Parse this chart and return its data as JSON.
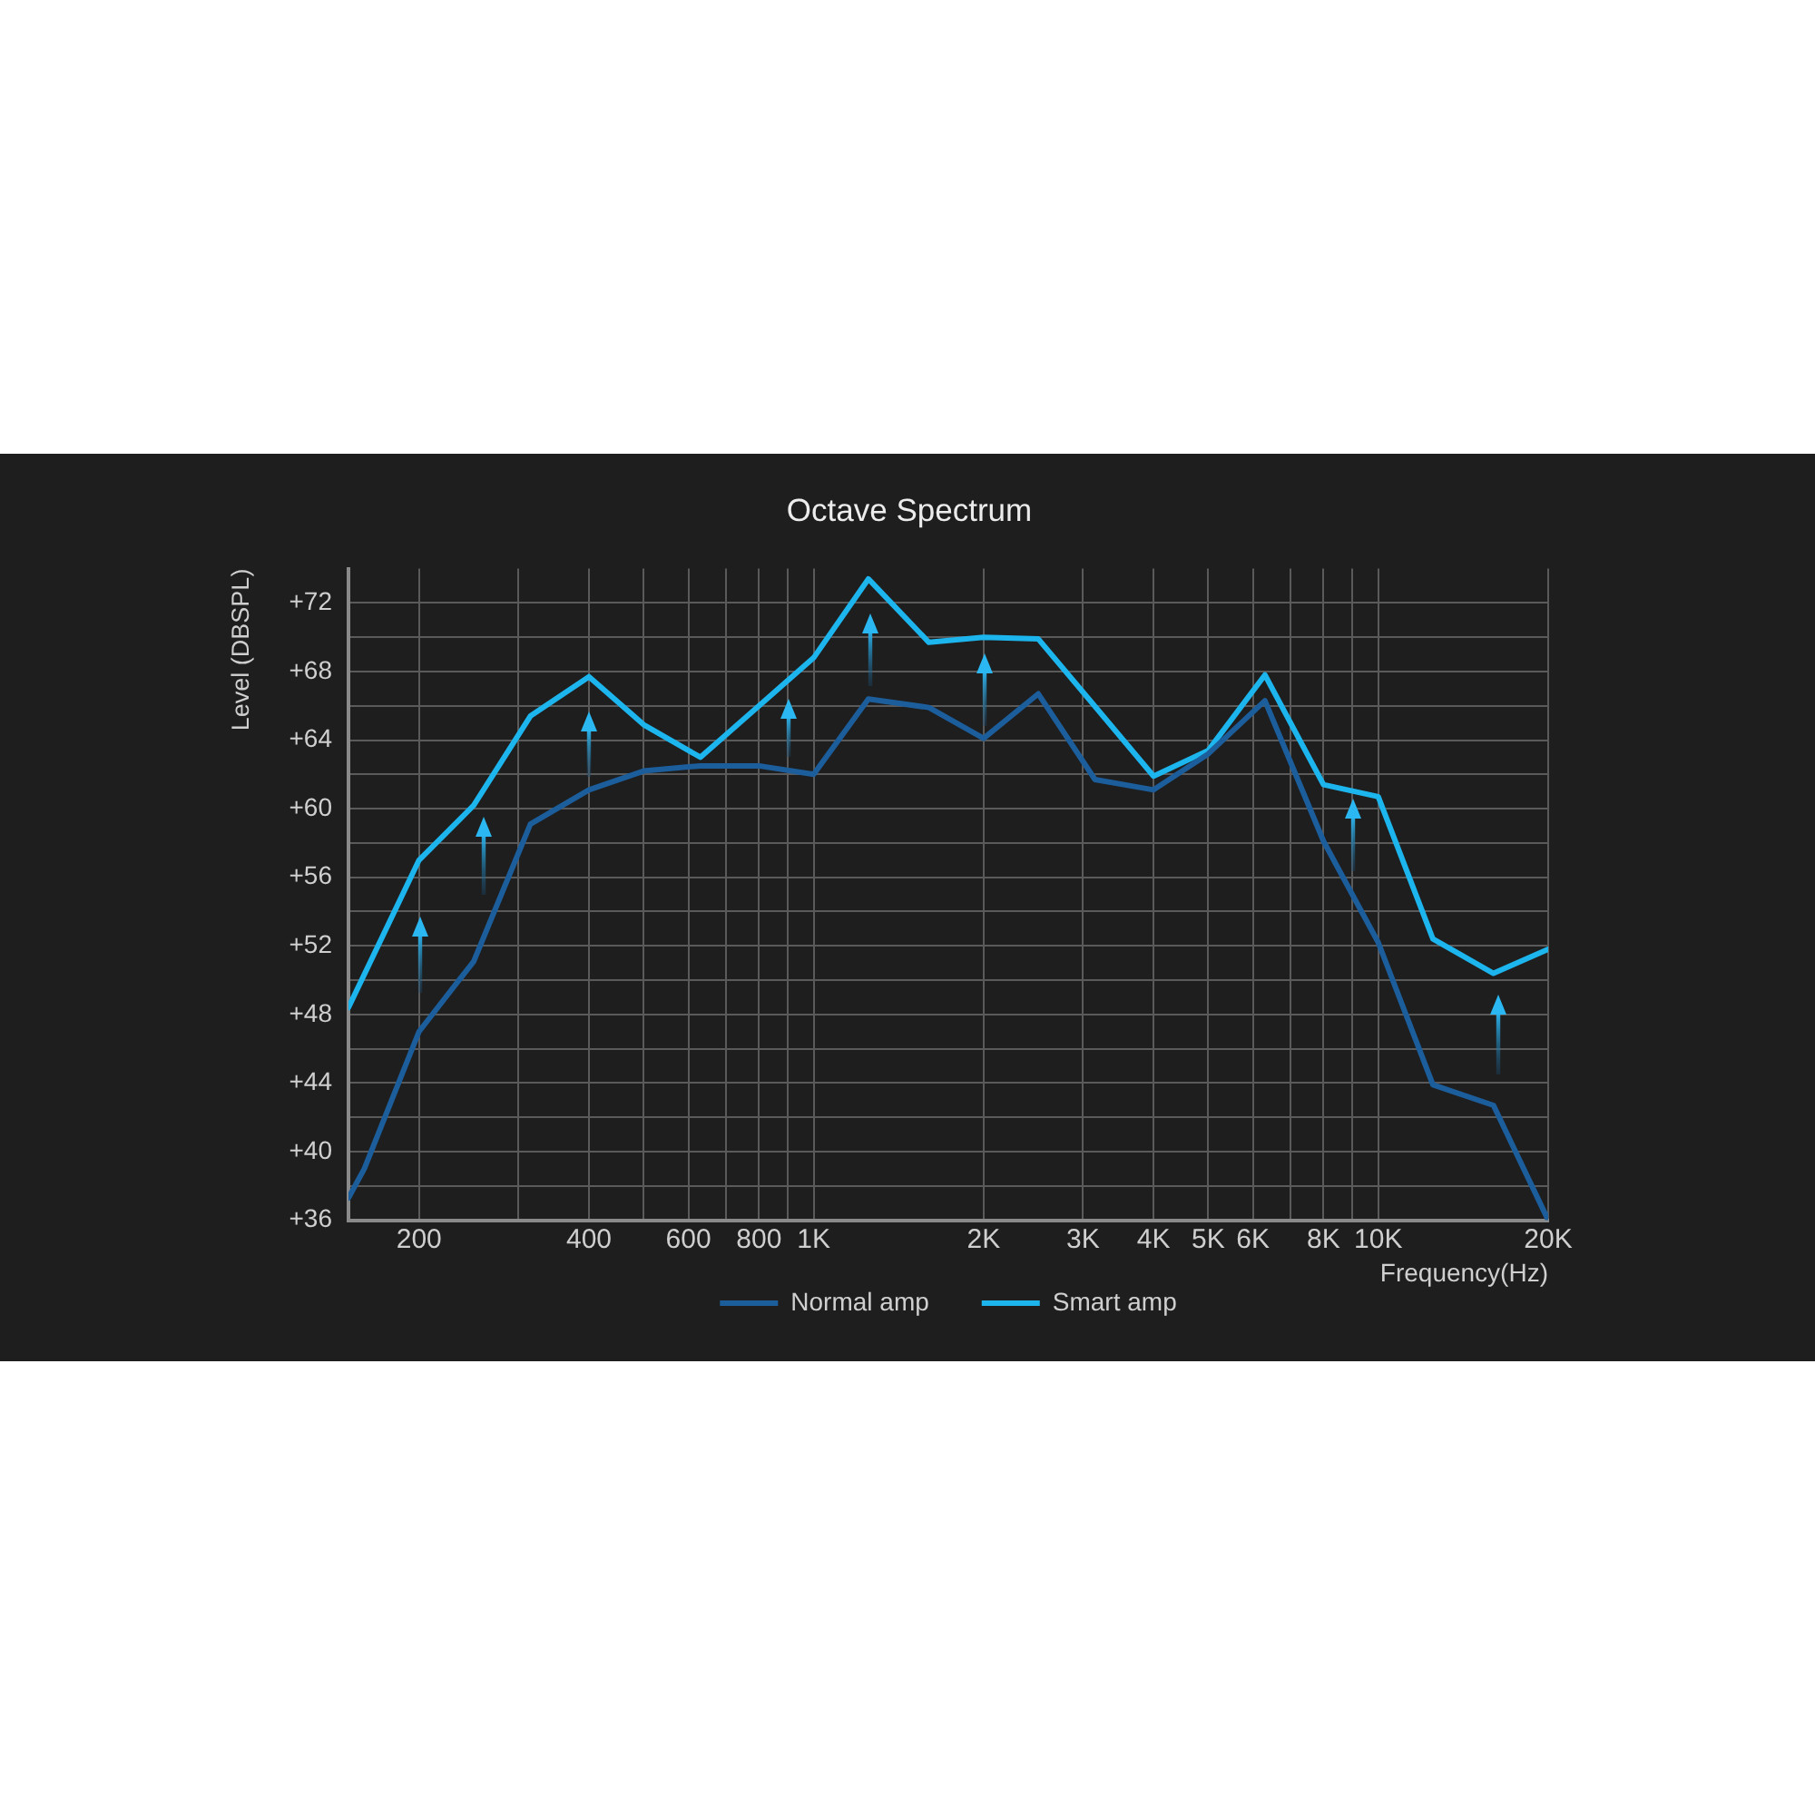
{
  "chart_data": {
    "type": "line",
    "title": "Octave Spectrum",
    "xlabel": "Frequency(Hz)",
    "ylabel": "Level (DBSPL)",
    "log": "x",
    "xlim": [
      150,
      20000
    ],
    "ylim": [
      36,
      74
    ],
    "xticks": [
      200,
      {
        "value": 300,
        "label": null
      },
      400,
      {
        "value": 500,
        "label": null
      },
      600,
      {
        "value": 700,
        "label": null
      },
      800,
      {
        "value": 900,
        "label": null
      },
      {
        "value": 1000,
        "label": "1K"
      },
      {
        "value": 2000,
        "label": "2K"
      },
      {
        "value": 3000,
        "label": "3K"
      },
      {
        "value": 4000,
        "label": "4K"
      },
      {
        "value": 5000,
        "label": "5K"
      },
      {
        "value": 6000,
        "label": "6K"
      },
      {
        "value": 7000,
        "label": null
      },
      {
        "value": 8000,
        "label": "8K"
      },
      {
        "value": 9000,
        "label": null
      },
      {
        "value": 10000,
        "label": "10K"
      },
      {
        "value": 20000,
        "label": "20K"
      }
    ],
    "yticks": [
      {
        "value": 36,
        "label": "+36"
      },
      {
        "value": 38,
        "label": null
      },
      {
        "value": 40,
        "label": "+40"
      },
      {
        "value": 42,
        "label": null
      },
      {
        "value": 44,
        "label": "+44"
      },
      {
        "value": 46,
        "label": null
      },
      {
        "value": 48,
        "label": "+48"
      },
      {
        "value": 50,
        "label": null
      },
      {
        "value": 52,
        "label": "+52"
      },
      {
        "value": 54,
        "label": null
      },
      {
        "value": 56,
        "label": "+56"
      },
      {
        "value": 58,
        "label": null
      },
      {
        "value": 60,
        "label": "+60"
      },
      {
        "value": 62,
        "label": null
      },
      {
        "value": 64,
        "label": "+64"
      },
      {
        "value": 66,
        "label": null
      },
      {
        "value": 68,
        "label": "+68"
      },
      {
        "value": 70,
        "label": null
      },
      {
        "value": 72,
        "label": "+72"
      }
    ],
    "grid": true,
    "legend": "bottom",
    "marker": "none",
    "line_style": "solid",
    "series": [
      {
        "name": "Normal amp",
        "color": "#1c5e9c",
        "x": [
          150,
          160,
          200,
          250,
          315,
          400,
          500,
          630,
          800,
          1000,
          1250,
          1600,
          2000,
          2500,
          3150,
          4000,
          5000,
          6300,
          8000,
          10000,
          12500,
          16000,
          20000
        ],
        "values": [
          37.3,
          39.0,
          47.0,
          51.1,
          59.1,
          61.1,
          62.2,
          62.5,
          62.5,
          62.0,
          66.4,
          65.9,
          64.1,
          66.7,
          61.7,
          61.1,
          63.2,
          66.3,
          58.1,
          52.2,
          43.9,
          42.7,
          36.0
        ]
      },
      {
        "name": "Smart amp",
        "color": "#1db5ee",
        "x": [
          150,
          200,
          250,
          315,
          400,
          500,
          630,
          1000,
          1250,
          1600,
          2000,
          2500,
          4000,
          5000,
          6300,
          8000,
          10000,
          12500,
          16000,
          20000
        ],
        "values": [
          48.4,
          57.0,
          60.2,
          65.4,
          67.7,
          64.9,
          63.0,
          68.8,
          73.4,
          69.7,
          70.0,
          69.9,
          61.9,
          63.4,
          67.8,
          61.4,
          60.7,
          52.4,
          50.4,
          51.8
        ]
      }
    ]
  }
}
